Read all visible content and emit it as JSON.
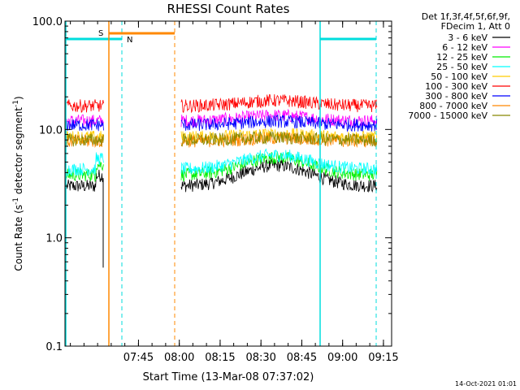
{
  "chart_data": {
    "type": "line",
    "title": "RHESSI Count Rates",
    "xlabel": "Start Time (13-Mar-08 07:37:02)",
    "ylabel_main": "Count Rate (s",
    "ylabel_sup1": "-1",
    "ylabel_mid": " detector segment",
    "ylabel_sup2": "-1",
    "ylabel_end": ")",
    "y_scale": "log",
    "ylim": [
      0.1,
      100.0
    ],
    "y_ticks": [
      {
        "value": 0.1,
        "label": "0.1"
      },
      {
        "value": 1.0,
        "label": "1.0"
      },
      {
        "value": 10.0,
        "label": "10.0"
      },
      {
        "value": 100.0,
        "label": "100.0"
      }
    ],
    "x_range_minutes": [
      7.3,
      9.3
    ],
    "x_ticks": [
      {
        "value": 7.75,
        "label": "07:45"
      },
      {
        "value": 8.0,
        "label": "08:00"
      },
      {
        "value": 8.25,
        "label": "08:15"
      },
      {
        "value": 8.5,
        "label": "08:30"
      },
      {
        "value": 8.75,
        "label": "08:45"
      },
      {
        "value": 9.0,
        "label": "09:00"
      },
      {
        "value": 9.25,
        "label": "09:15"
      }
    ],
    "legend_header": [
      "Det 1f,3f,4f,5f,6f,9f,",
      "FDecim 1, Att 0"
    ],
    "series": [
      {
        "name": "3 - 6 keV",
        "color": "#000000",
        "base": 3.0,
        "bump": 0.55
      },
      {
        "name": "6 - 12 keV",
        "color": "#ff00ff",
        "base": 12.0,
        "bump": 0.12
      },
      {
        "name": "12 - 25 keV",
        "color": "#00ee00",
        "base": 3.8,
        "bump": 0.45
      },
      {
        "name": "25 - 50 keV",
        "color": "#00ffff",
        "base": 4.3,
        "bump": 0.35
      },
      {
        "name": "50 - 100 keV",
        "color": "#ffcc00",
        "base": 8.5,
        "bump": 0.06
      },
      {
        "name": "100 - 300 keV",
        "color": "#ff0000",
        "base": 16.5,
        "bump": 0.12
      },
      {
        "name": "300 - 800 keV",
        "color": "#0000ff",
        "base": 11.0,
        "bump": 0.08
      },
      {
        "name": "800 - 7000 keV",
        "color": "#ff8800",
        "base": 7.8,
        "bump": 0.06
      },
      {
        "name": "7000 - 15000 keV",
        "color": "#888800",
        "base": 8.0,
        "bump": 0.05
      }
    ],
    "annotations": [
      {
        "label": "S",
        "color": "#ff8800"
      },
      {
        "label": "N",
        "color": "#00dddd"
      }
    ],
    "footer": "14-Oct-2021 01:01"
  }
}
